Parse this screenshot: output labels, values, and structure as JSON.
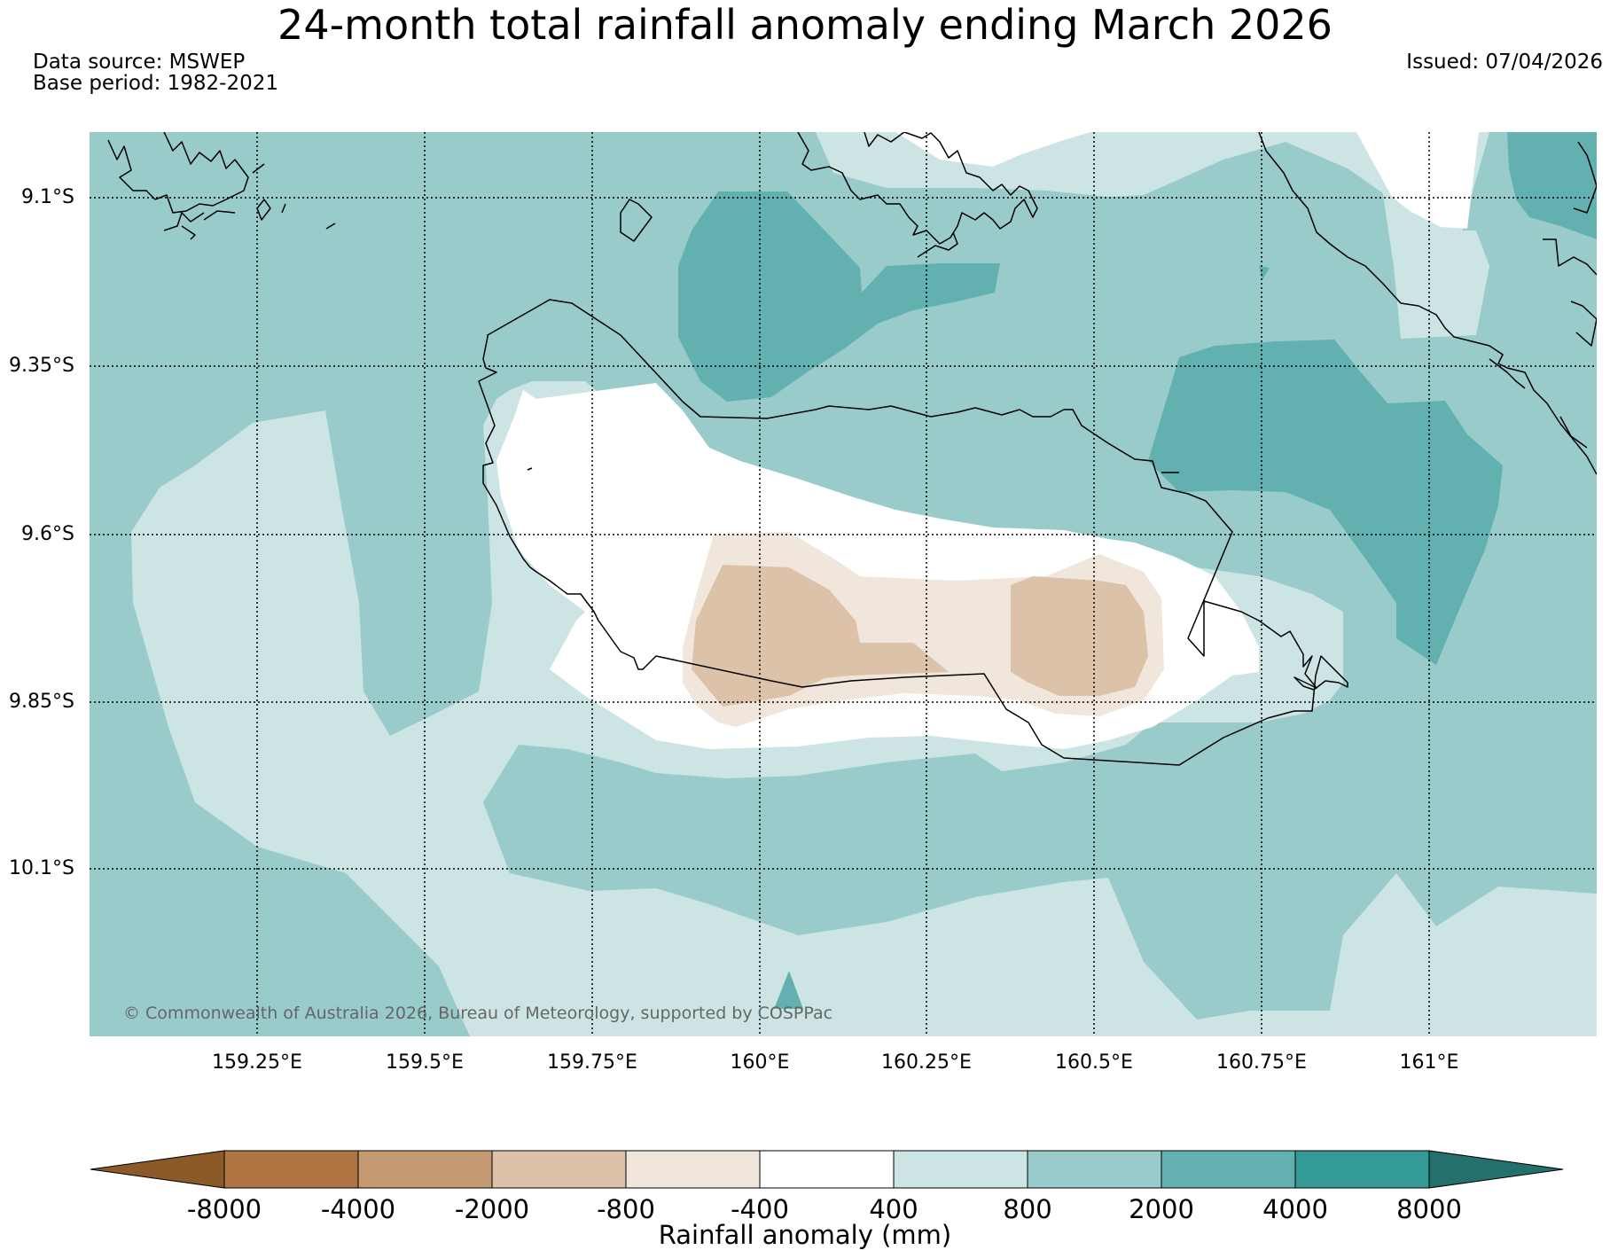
{
  "header": {
    "title": "24-month total rainfall anomaly ending March 2026",
    "data_source": "Data source: MSWEP",
    "base_period": "Base period: 1982-2021",
    "issued": "Issued: 07/04/2026"
  },
  "map": {
    "region": "Solomon Islands - Guadalcanal",
    "latitude_labels": [
      "9.1°S",
      "9.35°S",
      "9.6°S",
      "9.85°S",
      "10.1°S"
    ],
    "longitude_labels": [
      "159.25°E",
      "159.5°E",
      "159.75°E",
      "160°E",
      "160.25°E",
      "160.5°E",
      "160.75°E",
      "161°E"
    ],
    "copyright": "© Commonwealth of Australia 2026, Bureau of Meteorology, supported by COSPPac"
  },
  "colorbar": {
    "label": "Rainfall anomaly (mm)",
    "ticks": [
      "-8000",
      "-4000",
      "-2000",
      "-800",
      "-400",
      "400",
      "800",
      "2000",
      "4000",
      "8000"
    ],
    "colors": [
      "#8c5a28",
      "#ae7542",
      "#c49a72",
      "#dcc2a8",
      "#f0e6dc",
      "#ffffff",
      "#cce5e4",
      "#99cbcb",
      "#63b0b0",
      "#339a96",
      "#23706d"
    ]
  }
}
